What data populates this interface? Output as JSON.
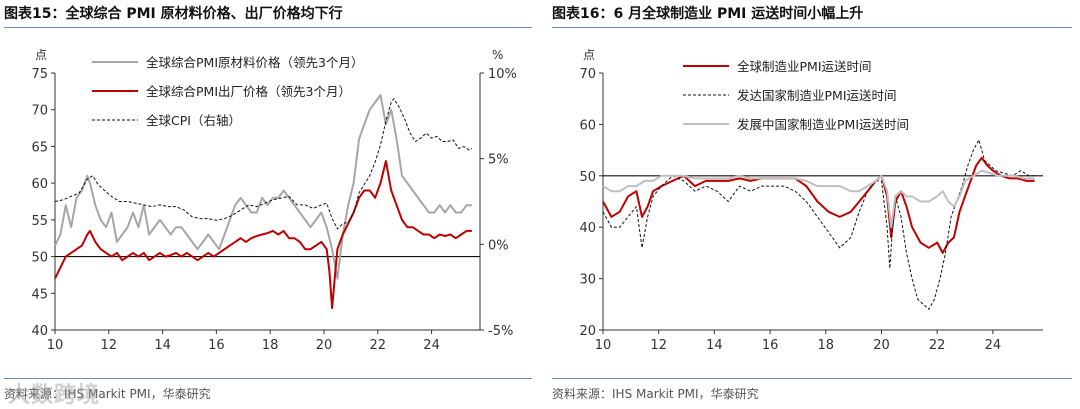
{
  "watermark": "大数跨境",
  "left": {
    "title": "图表15：全球综合 PMI 原材料价格、出厂价格均下行",
    "source": "资料来源：IHS Markit PMI，华泰研究",
    "chart_data": {
      "type": "line",
      "ylabel_left": "点",
      "ylabel_right": "%",
      "y_left_ticks": [
        40,
        45,
        50,
        55,
        60,
        65,
        70,
        75
      ],
      "y_right_tick_labels": [
        "-5%",
        "0%",
        "5%",
        "10%"
      ],
      "y_right_ticks": [
        -5,
        0,
        5,
        10
      ],
      "ylim_left": [
        40,
        75
      ],
      "ylim_right": [
        -5,
        10
      ],
      "xlim": [
        2010,
        2025.8
      ],
      "x_ticks": [
        2010,
        2012,
        2014,
        2016,
        2018,
        2020,
        2022,
        2024
      ],
      "x_tick_labels": [
        "10",
        "12",
        "14",
        "16",
        "18",
        "20",
        "22",
        "24"
      ],
      "reference_line": 50,
      "legend_position": "top-left",
      "series": [
        {
          "name": "全球综合PMI原材料价格（领先3个月）",
          "axis": "left",
          "color": "#a6a6a6",
          "style": "solid",
          "x": [
            2010.0,
            2010.2,
            2010.4,
            2010.6,
            2010.8,
            2011.0,
            2011.2,
            2011.3,
            2011.5,
            2011.7,
            2011.9,
            2012.1,
            2012.3,
            2012.5,
            2012.7,
            2012.9,
            2013.1,
            2013.3,
            2013.5,
            2013.7,
            2013.9,
            2014.1,
            2014.3,
            2014.5,
            2014.7,
            2014.9,
            2015.1,
            2015.3,
            2015.5,
            2015.7,
            2015.9,
            2016.1,
            2016.3,
            2016.5,
            2016.7,
            2016.9,
            2017.1,
            2017.3,
            2017.5,
            2017.7,
            2017.9,
            2018.1,
            2018.3,
            2018.5,
            2018.7,
            2018.9,
            2019.1,
            2019.3,
            2019.5,
            2019.7,
            2019.9,
            2020.1,
            2020.3,
            2020.5,
            2020.7,
            2020.9,
            2021.1,
            2021.3,
            2021.5,
            2021.7,
            2021.9,
            2022.1,
            2022.3,
            2022.5,
            2022.7,
            2022.9,
            2023.1,
            2023.3,
            2023.5,
            2023.7,
            2023.9,
            2024.1,
            2024.3,
            2024.5,
            2024.7,
            2024.9,
            2025.1,
            2025.3,
            2025.5
          ],
          "values": [
            51.5,
            53,
            57,
            54,
            58,
            59,
            61,
            60,
            57,
            55,
            54,
            56,
            52,
            53,
            54,
            56,
            54,
            57,
            53,
            54,
            55,
            54,
            53,
            54,
            54,
            53,
            52,
            51,
            52,
            53,
            52,
            51,
            53,
            55,
            57,
            58,
            57,
            56,
            56,
            58,
            57,
            58,
            58,
            59,
            58,
            57,
            56,
            55,
            54,
            55,
            56,
            54,
            51,
            47,
            53,
            57,
            60,
            66,
            68,
            70,
            71,
            72,
            68,
            70,
            66,
            61,
            60,
            59,
            58,
            57,
            56,
            56,
            57,
            56,
            57,
            56,
            56,
            57,
            57
          ]
        },
        {
          "name": "全球综合PMI出厂价格（领先3个月）",
          "axis": "left",
          "color": "#c00000",
          "style": "solid",
          "x": [
            2010.0,
            2010.2,
            2010.4,
            2010.6,
            2010.8,
            2011.0,
            2011.2,
            2011.3,
            2011.5,
            2011.7,
            2011.9,
            2012.1,
            2012.3,
            2012.5,
            2012.7,
            2012.9,
            2013.1,
            2013.3,
            2013.5,
            2013.7,
            2013.9,
            2014.1,
            2014.3,
            2014.5,
            2014.7,
            2014.9,
            2015.1,
            2015.3,
            2015.5,
            2015.7,
            2015.9,
            2016.1,
            2016.3,
            2016.5,
            2016.7,
            2016.9,
            2017.1,
            2017.3,
            2017.5,
            2017.7,
            2017.9,
            2018.1,
            2018.3,
            2018.5,
            2018.7,
            2018.9,
            2019.1,
            2019.3,
            2019.5,
            2019.7,
            2019.9,
            2020.1,
            2020.2,
            2020.3,
            2020.4,
            2020.5,
            2020.7,
            2020.9,
            2021.1,
            2021.3,
            2021.5,
            2021.7,
            2021.9,
            2022.1,
            2022.3,
            2022.5,
            2022.7,
            2022.9,
            2023.1,
            2023.3,
            2023.5,
            2023.7,
            2023.9,
            2024.1,
            2024.3,
            2024.5,
            2024.7,
            2024.9,
            2025.1,
            2025.3,
            2025.5
          ],
          "values": [
            47,
            48.5,
            50,
            50.5,
            51,
            51.5,
            53,
            53.5,
            52,
            51,
            50.5,
            50,
            50.5,
            49.5,
            50,
            50.5,
            50,
            50.5,
            49.5,
            50,
            50.5,
            50,
            50.2,
            50.5,
            50,
            50.5,
            50,
            49.5,
            50,
            50.5,
            50,
            50.5,
            51,
            51.5,
            52,
            52.5,
            52,
            52.5,
            52.8,
            53,
            53.2,
            53.5,
            53,
            53.5,
            52.5,
            52.5,
            52,
            51,
            51,
            51.5,
            52,
            51,
            48,
            43,
            47,
            51,
            53,
            54.5,
            56,
            58,
            59,
            59,
            58,
            60,
            63,
            59,
            57,
            55,
            54,
            54,
            53.5,
            53,
            53,
            52.5,
            53,
            52.8,
            53,
            52.5,
            53,
            53.5,
            53.5
          ]
        },
        {
          "name": "全球CPI（右轴）",
          "axis": "right",
          "color": "#111111",
          "style": "dashed",
          "x": [
            2010.0,
            2010.3,
            2010.6,
            2010.9,
            2011.2,
            2011.4,
            2011.6,
            2011.8,
            2012.1,
            2012.4,
            2012.7,
            2013.0,
            2013.3,
            2013.6,
            2013.9,
            2014.2,
            2014.5,
            2014.8,
            2015.1,
            2015.4,
            2015.7,
            2016.0,
            2016.3,
            2016.6,
            2016.9,
            2017.2,
            2017.5,
            2017.8,
            2018.1,
            2018.4,
            2018.7,
            2019.0,
            2019.3,
            2019.6,
            2019.9,
            2020.1,
            2020.3,
            2020.5,
            2020.7,
            2020.9,
            2021.1,
            2021.3,
            2021.5,
            2021.7,
            2021.9,
            2022.1,
            2022.3,
            2022.5,
            2022.6,
            2022.8,
            2023.0,
            2023.2,
            2023.4,
            2023.6,
            2023.8,
            2024.0,
            2024.2,
            2024.4,
            2024.6,
            2024.8,
            2025.0,
            2025.2,
            2025.4,
            2025.5
          ],
          "values": [
            2.5,
            2.6,
            2.8,
            3.0,
            3.8,
            4.0,
            3.5,
            3.2,
            2.8,
            2.5,
            2.5,
            2.4,
            2.3,
            2.2,
            2.3,
            2.2,
            2.2,
            2.0,
            1.6,
            1.5,
            1.5,
            1.4,
            1.5,
            1.7,
            2.0,
            2.3,
            2.2,
            2.4,
            2.6,
            2.7,
            2.8,
            2.3,
            2.3,
            2.1,
            2.3,
            2.4,
            1.5,
            0.9,
            1.2,
            1.3,
            1.8,
            3.0,
            3.5,
            4.0,
            4.8,
            5.8,
            7.2,
            8.3,
            8.5,
            8.0,
            7.3,
            6.5,
            6.0,
            6.2,
            6.5,
            6.2,
            6.3,
            6.0,
            6.0,
            6.1,
            5.6,
            5.7,
            5.5,
            5.6
          ]
        }
      ]
    }
  },
  "right": {
    "title": "图表16：6 月全球制造业 PMI 运送时间小幅上升",
    "source": "资料来源：IHS Markit PMI，华泰研究",
    "chart_data": {
      "type": "line",
      "ylabel": "点",
      "y_ticks": [
        20,
        30,
        40,
        50,
        60,
        70
      ],
      "ylim": [
        20,
        70
      ],
      "xlim": [
        2010,
        2025.8
      ],
      "x_ticks": [
        2010,
        2012,
        2014,
        2016,
        2018,
        2020,
        2022,
        2024
      ],
      "x_tick_labels": [
        "10",
        "12",
        "14",
        "16",
        "18",
        "20",
        "22",
        "24"
      ],
      "reference_line": 50,
      "legend_position": "top-left",
      "series": [
        {
          "name": "全球制造业PMI运送时间",
          "color": "#c00000",
          "style": "solid",
          "x": [
            2010.0,
            2010.3,
            2010.6,
            2010.9,
            2011.2,
            2011.4,
            2011.6,
            2011.8,
            2012.1,
            2012.5,
            2012.9,
            2013.3,
            2013.7,
            2014.1,
            2014.5,
            2014.9,
            2015.3,
            2015.7,
            2016.1,
            2016.5,
            2016.9,
            2017.3,
            2017.7,
            2018.1,
            2018.5,
            2018.9,
            2019.2,
            2019.5,
            2019.8,
            2020.0,
            2020.2,
            2020.35,
            2020.5,
            2020.7,
            2020.9,
            2021.1,
            2021.4,
            2021.7,
            2022.0,
            2022.2,
            2022.4,
            2022.6,
            2022.8,
            2023.0,
            2023.2,
            2023.4,
            2023.6,
            2023.8,
            2024.0,
            2024.3,
            2024.6,
            2024.9,
            2025.2,
            2025.5
          ],
          "values": [
            45,
            42,
            43,
            46,
            47,
            42,
            44,
            47,
            48,
            49,
            50,
            48,
            49,
            49,
            49,
            49.5,
            49,
            49.5,
            49.5,
            49.5,
            49.5,
            48,
            45,
            43,
            42,
            43,
            45,
            47,
            49,
            50,
            46,
            38,
            45,
            47,
            44,
            40,
            37,
            36,
            37,
            35,
            37,
            38,
            43,
            46,
            49,
            52,
            53.5,
            52,
            51,
            50,
            49.5,
            49.5,
            49,
            49
          ]
        },
        {
          "name": "发达国家制造业PMI运送时间",
          "color": "#111111",
          "style": "dashed",
          "x": [
            2010.0,
            2010.3,
            2010.6,
            2010.9,
            2011.2,
            2011.4,
            2011.6,
            2011.8,
            2012.1,
            2012.5,
            2012.9,
            2013.3,
            2013.7,
            2014.1,
            2014.5,
            2014.9,
            2015.3,
            2015.7,
            2016.1,
            2016.5,
            2016.9,
            2017.3,
            2017.7,
            2018.1,
            2018.5,
            2018.9,
            2019.2,
            2019.5,
            2019.8,
            2020.0,
            2020.2,
            2020.3,
            2020.4,
            2020.5,
            2020.7,
            2020.9,
            2021.1,
            2021.3,
            2021.5,
            2021.7,
            2021.9,
            2022.1,
            2022.3,
            2022.5,
            2022.7,
            2022.9,
            2023.1,
            2023.3,
            2023.5,
            2023.7,
            2023.9,
            2024.1,
            2024.4,
            2024.7,
            2025.0,
            2025.3,
            2025.5
          ],
          "values": [
            43,
            40,
            40,
            42,
            44,
            36,
            42,
            46,
            48,
            50,
            49,
            47,
            48,
            47,
            45,
            48,
            47,
            48,
            48,
            48,
            47,
            45,
            42,
            39,
            36,
            38,
            43,
            47,
            49,
            49,
            40,
            32,
            40,
            46,
            42,
            35,
            30,
            26,
            25,
            24,
            26,
            30,
            35,
            42,
            45,
            48,
            52,
            55,
            57,
            53,
            52,
            51,
            50.5,
            50,
            51,
            50,
            50
          ]
        },
        {
          "name": "发展中国家制造业PMI运送时间",
          "color": "#bfbfbf",
          "style": "solid",
          "x": [
            2010.0,
            2010.3,
            2010.6,
            2010.9,
            2011.2,
            2011.5,
            2011.8,
            2012.1,
            2012.5,
            2012.9,
            2013.3,
            2013.7,
            2014.1,
            2014.5,
            2014.9,
            2015.3,
            2015.7,
            2016.1,
            2016.5,
            2016.9,
            2017.3,
            2017.7,
            2018.1,
            2018.5,
            2018.9,
            2019.2,
            2019.5,
            2019.8,
            2020.0,
            2020.2,
            2020.35,
            2020.5,
            2020.7,
            2020.9,
            2021.1,
            2021.4,
            2021.7,
            2022.0,
            2022.2,
            2022.4,
            2022.6,
            2022.8,
            2023.0,
            2023.3,
            2023.6,
            2023.9,
            2024.2,
            2024.5,
            2024.8,
            2025.1,
            2025.5
          ],
          "values": [
            48,
            47,
            47,
            48,
            48,
            49,
            49,
            50,
            50,
            50,
            49.5,
            49.5,
            49.5,
            49.5,
            50,
            49.5,
            49.5,
            49.5,
            49.5,
            49.5,
            49,
            48,
            48,
            48,
            47,
            47,
            48,
            49,
            50,
            47,
            40,
            46,
            47,
            46,
            46,
            45,
            45,
            46,
            47,
            45,
            44,
            46,
            49,
            50,
            51,
            50.5,
            50,
            50,
            50,
            49.5,
            49.5
          ]
        }
      ]
    }
  }
}
